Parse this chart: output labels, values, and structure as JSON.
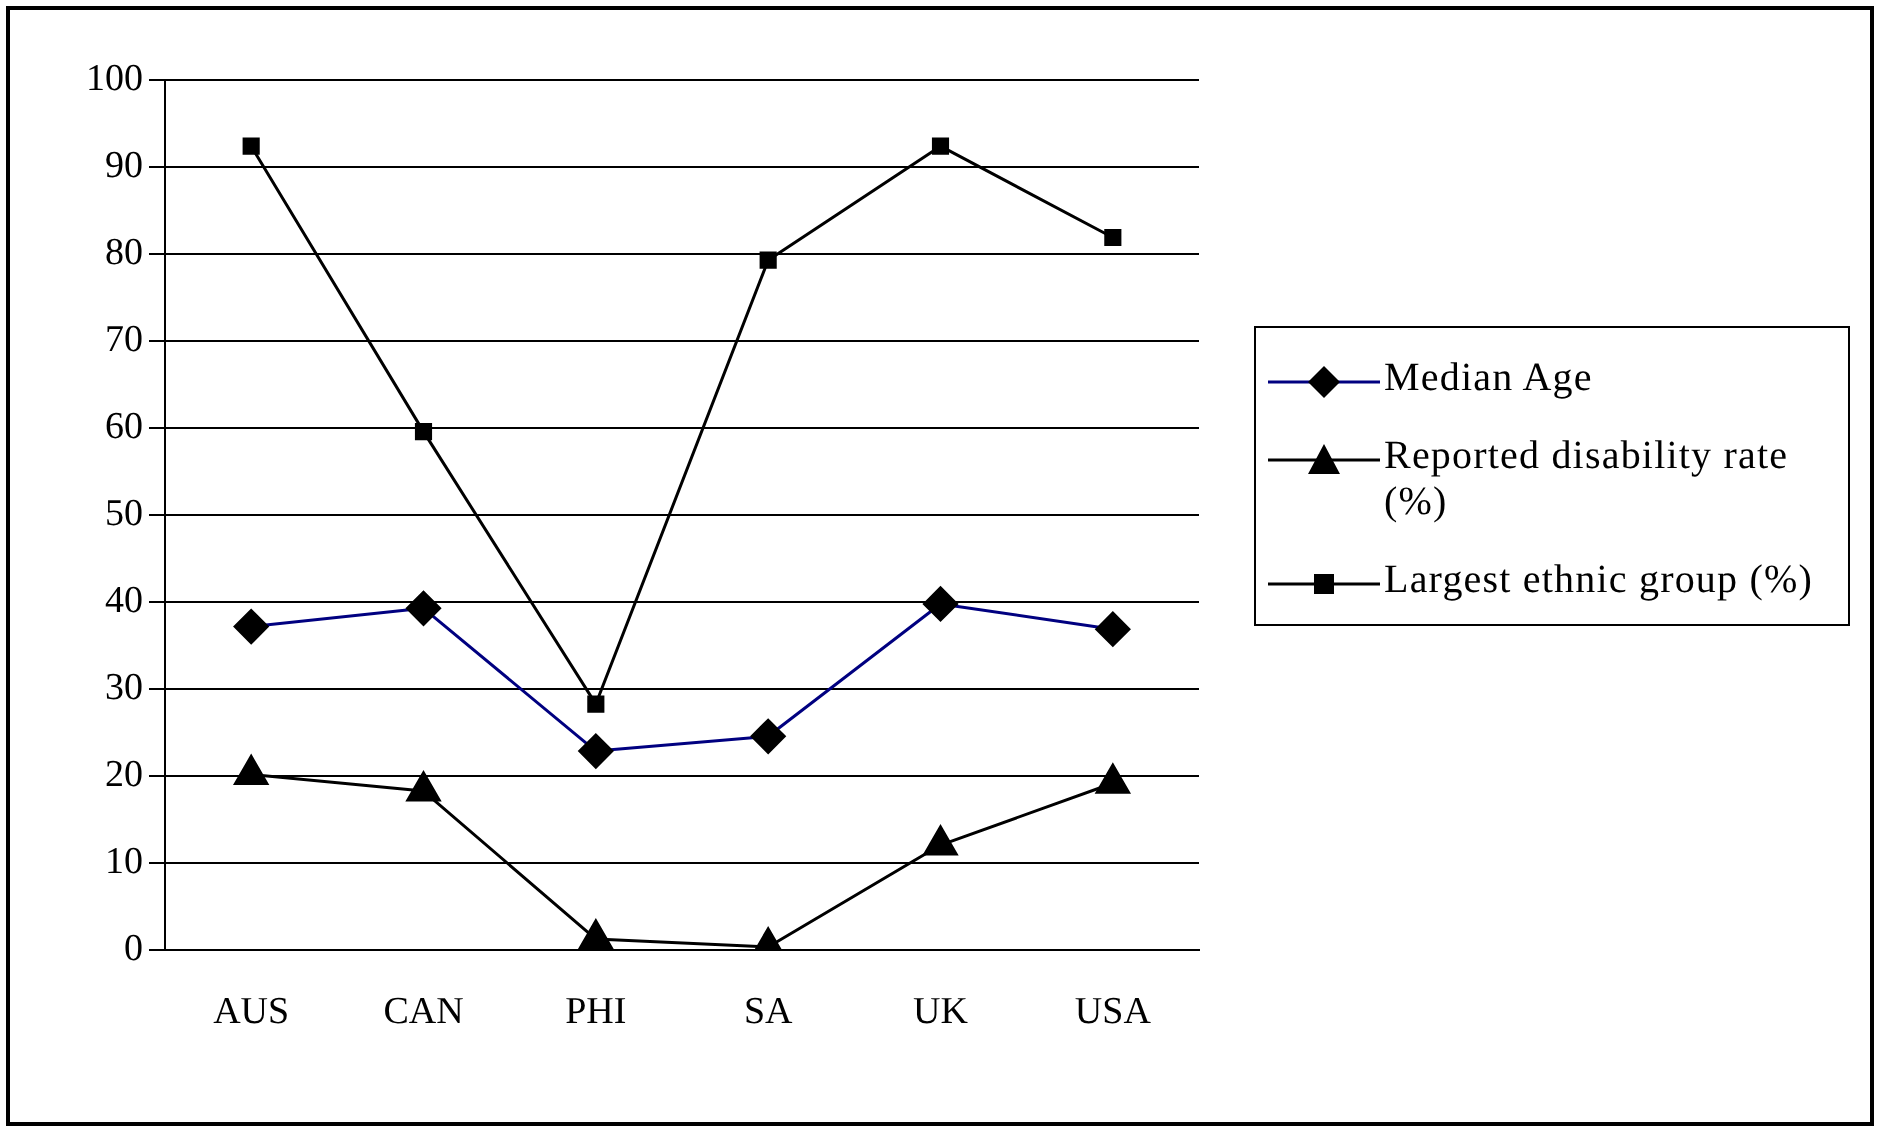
{
  "chart_data": {
    "type": "line",
    "categories": [
      "AUS",
      "CAN",
      "PHI",
      "SA",
      "UK",
      "USA"
    ],
    "series": [
      {
        "name": "Median Age",
        "color": "#000080",
        "marker": "diamond",
        "values": [
          37.2,
          39.3,
          22.9,
          24.6,
          39.8,
          36.9
        ]
      },
      {
        "name": "Reported disability rate (%)",
        "color": "#000000",
        "marker": "triangle",
        "values": [
          20.2,
          18.3,
          1.3,
          0.4,
          12.1,
          19.2
        ]
      },
      {
        "name": "Largest ethnic group (%)",
        "color": "#000000",
        "marker": "square",
        "values": [
          92.4,
          59.6,
          28.3,
          79.3,
          92.4,
          81.9
        ]
      }
    ],
    "ylim": [
      0,
      100
    ],
    "yticks": [
      0,
      10,
      20,
      30,
      40,
      50,
      60,
      70,
      80,
      90,
      100
    ],
    "grid": "y",
    "legend": "right"
  }
}
